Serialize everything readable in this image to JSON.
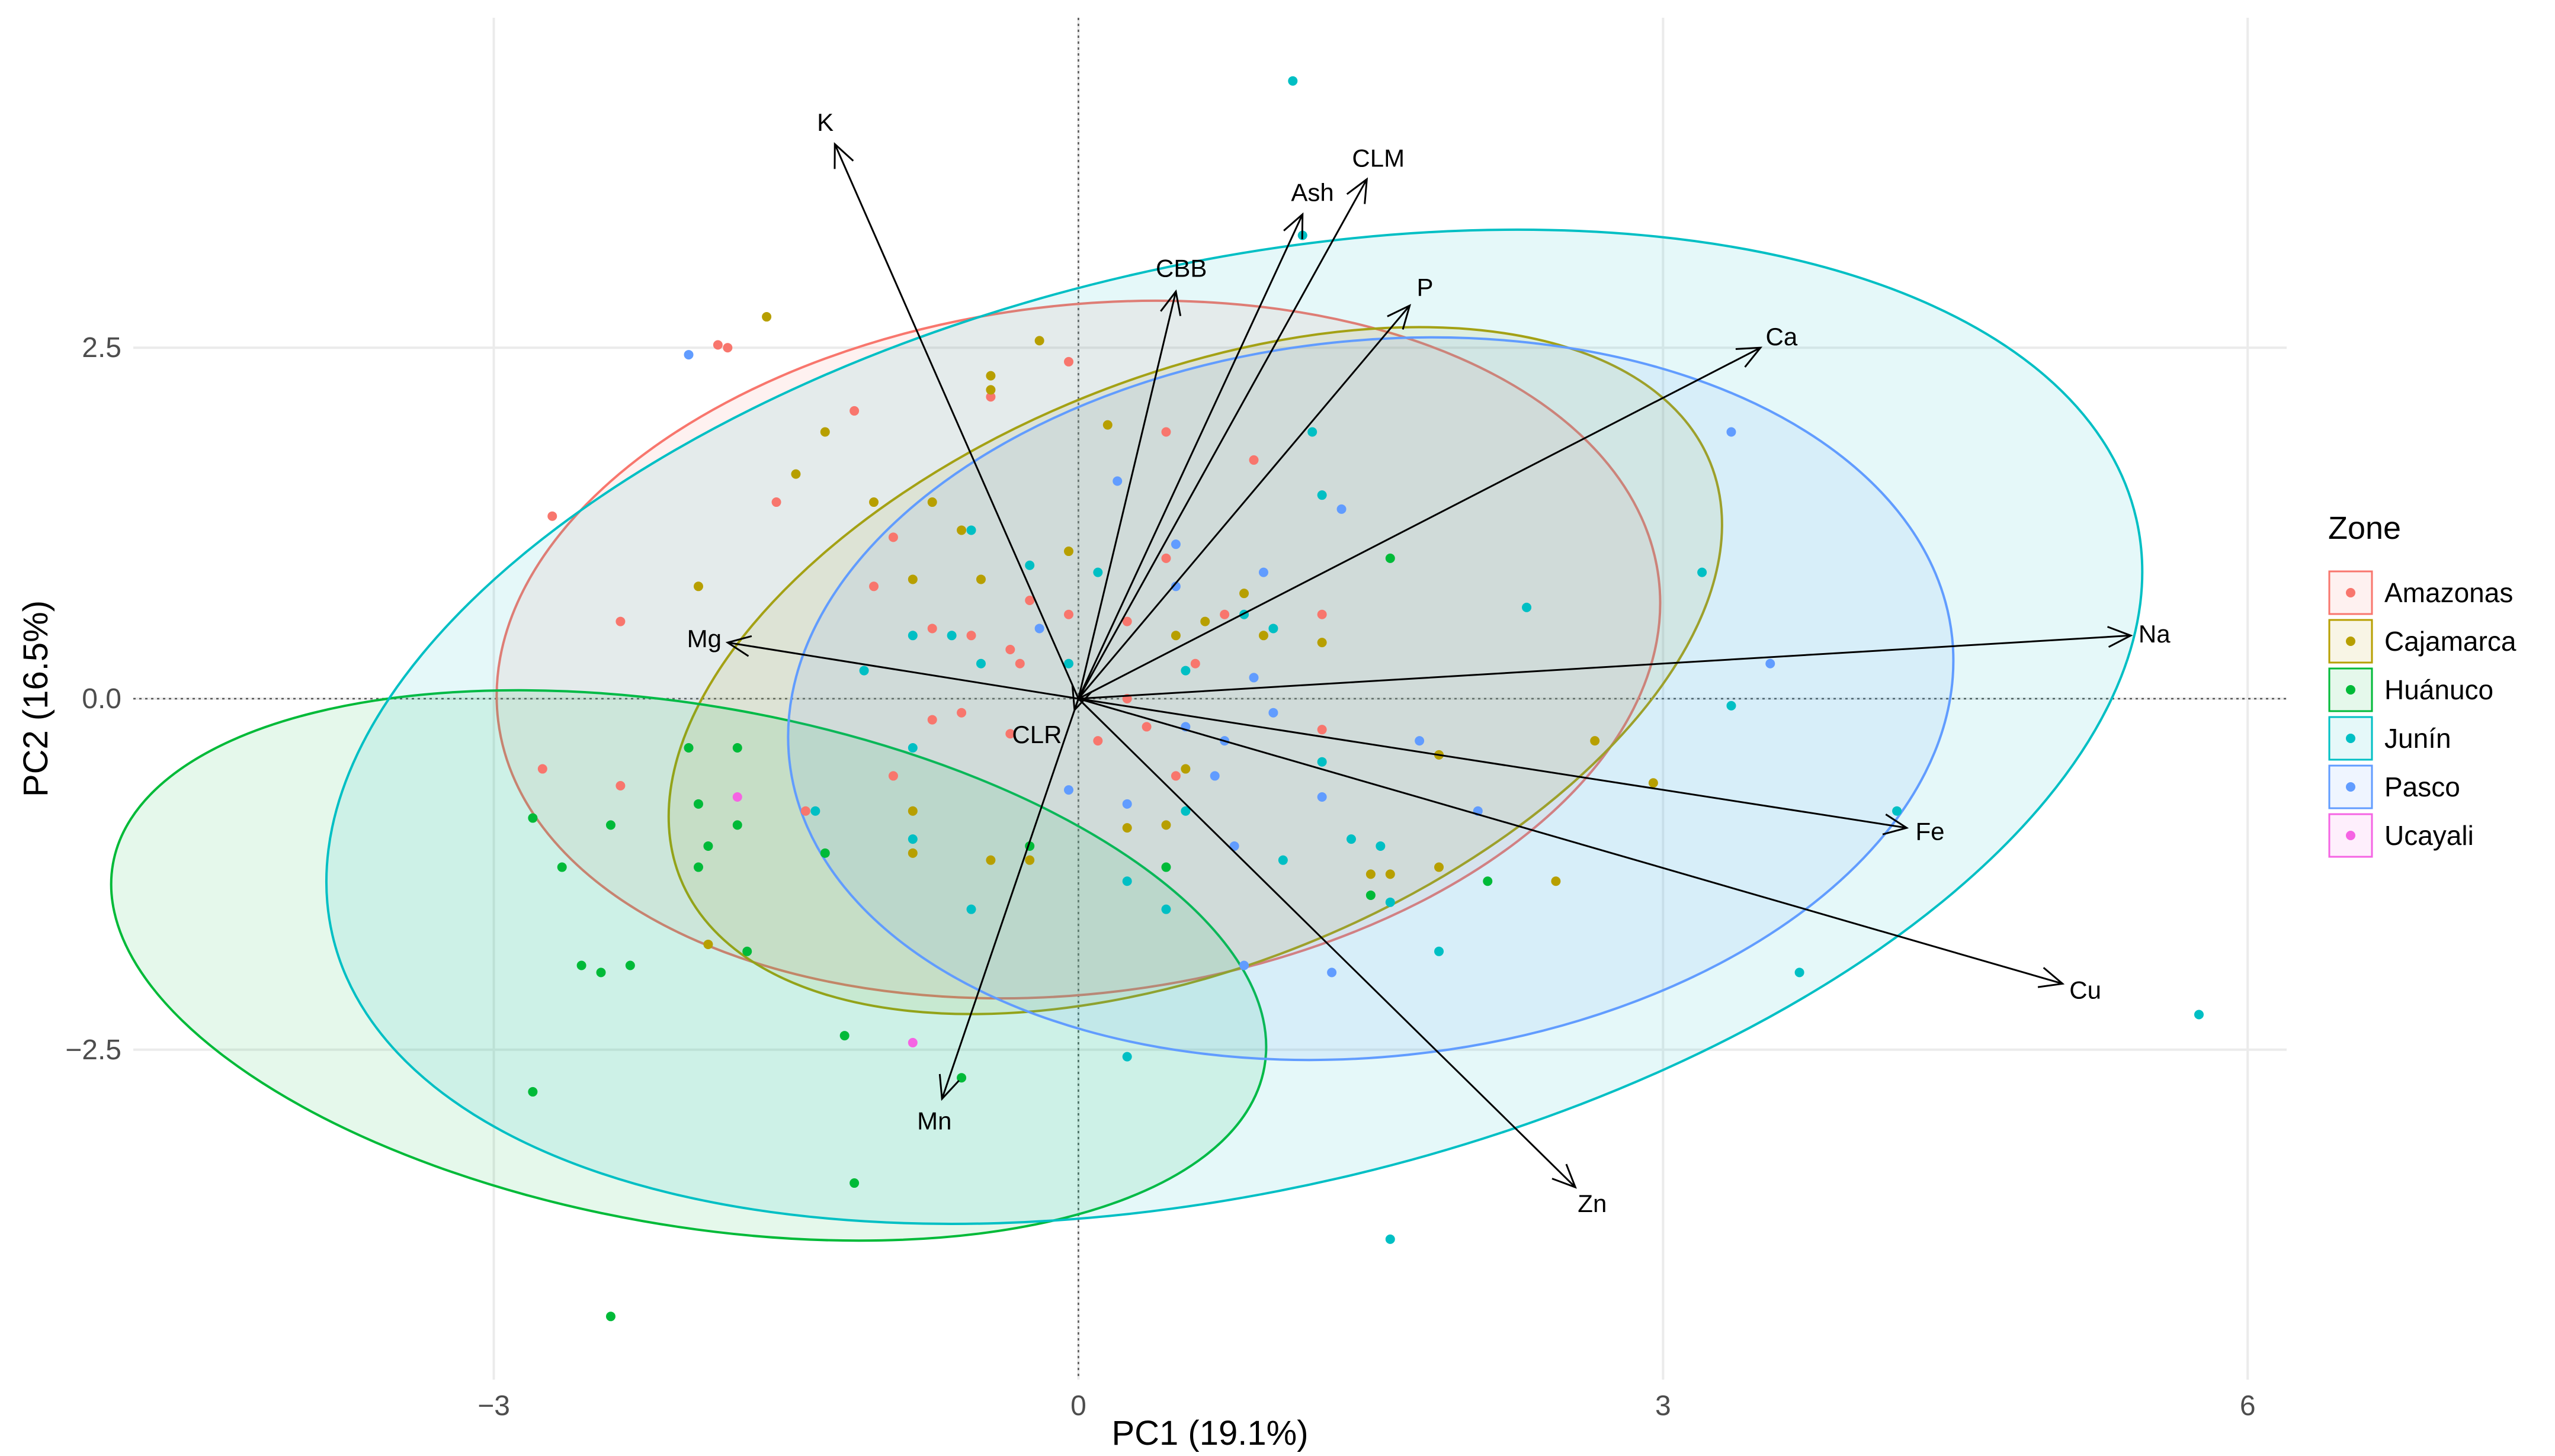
{
  "chart_data": {
    "type": "scatter",
    "subtype": "pca-biplot",
    "xlabel": "PC1 (19.1%)",
    "ylabel": "PC2 (16.5%)",
    "xlim": [
      -4.85,
      6.2
    ],
    "ylim": [
      -4.85,
      4.85
    ],
    "xticks": [
      -3,
      0,
      3,
      6
    ],
    "xtick_labels": [
      "−3",
      "0",
      "3",
      "6"
    ],
    "yticks": [
      -2.5,
      0,
      2.5
    ],
    "ytick_labels": [
      "−2.5",
      "0.0",
      "2.5"
    ],
    "grid": true,
    "zero_lines": "dotted",
    "legend": {
      "title": "Zone",
      "placement": "right",
      "entries": [
        "Amazonas",
        "Cajamarca",
        "Huánuco",
        "Junín",
        "Pasco",
        "Ucayali"
      ]
    },
    "series": [
      {
        "name": "Amazonas",
        "color": "#F8766D",
        "ellipse": {
          "cx": 0.0,
          "cy": 0.35,
          "rx": 3.0,
          "ry": 2.45,
          "angle_deg": -7
        },
        "points": [
          [
            -2.7,
            1.3
          ],
          [
            -2.35,
            0.55
          ],
          [
            -2.75,
            -0.5
          ],
          [
            -2.35,
            -0.62
          ],
          [
            -1.8,
            2.5
          ],
          [
            -1.85,
            2.52
          ],
          [
            -1.55,
            1.4
          ],
          [
            -1.15,
            2.05
          ],
          [
            -0.95,
            1.15
          ],
          [
            -1.05,
            0.8
          ],
          [
            -0.95,
            -0.55
          ],
          [
            -0.75,
            0.5
          ],
          [
            -0.75,
            -0.15
          ],
          [
            -0.55,
            0.45
          ],
          [
            -0.45,
            2.15
          ],
          [
            -0.35,
            0.35
          ],
          [
            -0.3,
            0.25
          ],
          [
            -0.25,
            0.7
          ],
          [
            -0.6,
            -0.1
          ],
          [
            -0.05,
            0.6
          ],
          [
            -0.05,
            2.4
          ],
          [
            0.25,
            0.0
          ],
          [
            0.35,
            -0.2
          ],
          [
            0.45,
            1.0
          ],
          [
            0.45,
            1.9
          ],
          [
            0.5,
            -0.55
          ],
          [
            0.6,
            0.25
          ],
          [
            0.75,
            0.6
          ],
          [
            0.9,
            1.7
          ],
          [
            1.25,
            0.6
          ],
          [
            1.25,
            -0.22
          ],
          [
            -0.35,
            -0.25
          ],
          [
            -1.4,
            -0.8
          ],
          [
            0.1,
            -0.3
          ],
          [
            0.25,
            0.55
          ]
        ]
      },
      {
        "name": "Cajamarca",
        "color": "#B79F00",
        "ellipse": {
          "cx": 0.6,
          "cy": 0.2,
          "rx": 2.85,
          "ry": 2.1,
          "angle_deg": -22
        },
        "points": [
          [
            -1.6,
            2.72
          ],
          [
            -1.45,
            1.6
          ],
          [
            -1.3,
            1.9
          ],
          [
            -1.05,
            1.4
          ],
          [
            -0.85,
            0.85
          ],
          [
            -0.75,
            1.4
          ],
          [
            -0.6,
            1.2
          ],
          [
            -0.45,
            2.3
          ],
          [
            -0.45,
            2.2
          ],
          [
            -0.5,
            0.85
          ],
          [
            -0.2,
            2.55
          ],
          [
            -0.05,
            1.05
          ],
          [
            0.15,
            1.95
          ],
          [
            0.25,
            -0.92
          ],
          [
            0.5,
            0.45
          ],
          [
            0.55,
            -0.5
          ],
          [
            0.65,
            0.55
          ],
          [
            0.85,
            0.75
          ],
          [
            0.95,
            0.45
          ],
          [
            1.25,
            0.4
          ],
          [
            1.5,
            -1.25
          ],
          [
            1.6,
            -1.25
          ],
          [
            1.85,
            -1.2
          ],
          [
            1.85,
            -0.4
          ],
          [
            2.45,
            -1.3
          ],
          [
            2.65,
            -0.3
          ],
          [
            2.95,
            -0.6
          ],
          [
            -1.95,
            0.8
          ],
          [
            -1.9,
            -1.75
          ],
          [
            -0.85,
            -0.8
          ],
          [
            -0.85,
            -1.1
          ],
          [
            -0.45,
            -1.15
          ],
          [
            -0.25,
            -1.15
          ],
          [
            0.45,
            -0.9
          ]
        ]
      },
      {
        "name": "Huánuco",
        "color": "#00BA38",
        "ellipse": {
          "cx": -2.0,
          "cy": -1.9,
          "rx": 3.0,
          "ry": 1.85,
          "angle_deg": 10
        },
        "points": [
          [
            -2.8,
            -0.85
          ],
          [
            -2.65,
            -1.2
          ],
          [
            -2.55,
            -1.9
          ],
          [
            -2.45,
            -1.95
          ],
          [
            -2.4,
            -0.9
          ],
          [
            -2.3,
            -1.9
          ],
          [
            -2.0,
            -0.35
          ],
          [
            -1.95,
            -0.75
          ],
          [
            -1.95,
            -1.2
          ],
          [
            -1.9,
            -1.05
          ],
          [
            -1.75,
            -0.35
          ],
          [
            -1.75,
            -0.9
          ],
          [
            -1.7,
            -1.8
          ],
          [
            -1.3,
            -1.1
          ],
          [
            -1.2,
            -2.4
          ],
          [
            -1.15,
            -3.45
          ],
          [
            -0.6,
            -2.7
          ],
          [
            -0.25,
            -1.05
          ],
          [
            0.45,
            -1.2
          ],
          [
            1.5,
            -1.4
          ],
          [
            1.6,
            1.0
          ],
          [
            2.1,
            -1.3
          ],
          [
            -2.8,
            -2.8
          ],
          [
            -2.4,
            -4.4
          ]
        ]
      },
      {
        "name": "Junín",
        "color": "#00BFC4",
        "ellipse": {
          "cx": 0.8,
          "cy": -0.2,
          "rx": 4.75,
          "ry": 3.3,
          "angle_deg": -13
        },
        "points": [
          [
            1.1,
            4.4
          ],
          [
            -1.35,
            -0.8
          ],
          [
            -1.1,
            0.2
          ],
          [
            -0.85,
            -1.0
          ],
          [
            -0.85,
            0.45
          ],
          [
            -0.85,
            -0.35
          ],
          [
            -0.65,
            0.45
          ],
          [
            -0.55,
            1.2
          ],
          [
            -0.55,
            -1.5
          ],
          [
            -0.5,
            0.25
          ],
          [
            -0.25,
            0.95
          ],
          [
            -0.05,
            0.25
          ],
          [
            0.1,
            0.9
          ],
          [
            0.25,
            -2.55
          ],
          [
            0.25,
            -1.3
          ],
          [
            0.45,
            -1.5
          ],
          [
            0.55,
            0.2
          ],
          [
            0.55,
            -0.8
          ],
          [
            1.05,
            -1.15
          ],
          [
            1.25,
            1.45
          ],
          [
            1.25,
            -0.45
          ],
          [
            1.4,
            -1.0
          ],
          [
            1.55,
            -1.05
          ],
          [
            1.6,
            -1.45
          ],
          [
            1.6,
            -3.85
          ],
          [
            1.85,
            -1.8
          ],
          [
            2.3,
            0.65
          ],
          [
            3.2,
            0.9
          ],
          [
            3.35,
            -0.05
          ],
          [
            3.7,
            -1.95
          ],
          [
            4.2,
            -0.8
          ],
          [
            5.75,
            -2.25
          ],
          [
            1.15,
            3.3
          ],
          [
            1.2,
            1.9
          ],
          [
            1.0,
            0.5
          ],
          [
            0.85,
            0.6
          ]
        ]
      },
      {
        "name": "Pasco",
        "color": "#619CFF",
        "ellipse": {
          "cx": 1.5,
          "cy": 0.0,
          "rx": 3.0,
          "ry": 2.55,
          "angle_deg": -6
        },
        "points": [
          [
            -2.0,
            2.45
          ],
          [
            0.2,
            1.55
          ],
          [
            0.5,
            0.8
          ],
          [
            0.5,
            1.1
          ],
          [
            0.7,
            -0.55
          ],
          [
            0.75,
            -0.3
          ],
          [
            0.8,
            -1.05
          ],
          [
            0.9,
            0.15
          ],
          [
            0.95,
            0.9
          ],
          [
            1.0,
            -0.1
          ],
          [
            1.25,
            -0.7
          ],
          [
            1.35,
            1.35
          ],
          [
            1.75,
            -0.3
          ],
          [
            2.05,
            -0.8
          ],
          [
            0.85,
            -1.9
          ],
          [
            1.3,
            -1.95
          ],
          [
            3.35,
            1.9
          ],
          [
            3.55,
            0.25
          ],
          [
            -0.05,
            -0.65
          ],
          [
            0.25,
            -0.75
          ],
          [
            0.55,
            -0.2
          ],
          [
            -0.2,
            0.5
          ]
        ]
      },
      {
        "name": "Ucayali",
        "color": "#F564E3",
        "ellipse": null,
        "points": [
          [
            -1.75,
            -0.7
          ],
          [
            -0.85,
            -2.45
          ]
        ]
      }
    ],
    "loadings": [
      {
        "label": "K",
        "x": -1.25,
        "y": 3.95
      },
      {
        "label": "CLM",
        "x": 1.48,
        "y": 3.7
      },
      {
        "label": "Ash",
        "x": 1.15,
        "y": 3.45
      },
      {
        "label": "CBB",
        "x": 0.5,
        "y": 2.9
      },
      {
        "label": "P",
        "x": 1.7,
        "y": 2.8
      },
      {
        "label": "Ca",
        "x": 3.5,
        "y": 2.5
      },
      {
        "label": "Na",
        "x": 5.4,
        "y": 0.45
      },
      {
        "label": "Mg",
        "x": -1.8,
        "y": 0.4
      },
      {
        "label": "CLR",
        "x": -0.02,
        "y": -0.08
      },
      {
        "label": "Fe",
        "x": 4.25,
        "y": -0.92
      },
      {
        "label": "Cu",
        "x": 5.05,
        "y": -2.03
      },
      {
        "label": "Mn",
        "x": -0.7,
        "y": -2.85
      },
      {
        "label": "Zn",
        "x": 2.55,
        "y": -3.48
      }
    ]
  }
}
